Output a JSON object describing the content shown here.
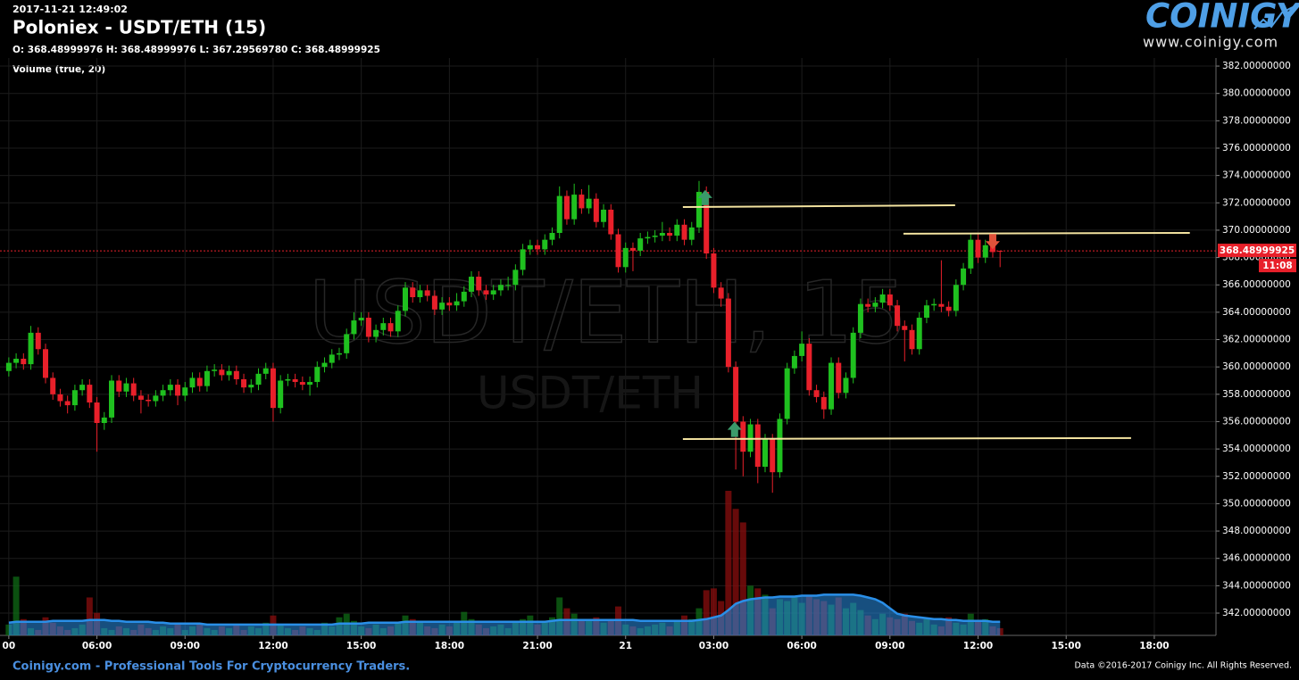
{
  "chart_data": {
    "type": "candlestick",
    "timestamp": "2017-11-21 12:49:02",
    "title": "Poloniex - USDT/ETH (15)",
    "ohlc_text": "O: 368.48999976 H: 368.48999976 L: 367.29569780 C: 368.48999925",
    "watermark": [
      "USDT/ETH, 15",
      "USDT/ETH"
    ],
    "x": [
      3,
      3.25,
      3.5,
      3.75,
      4,
      4.25,
      4.5,
      4.75,
      5,
      5.25,
      5.5,
      5.75,
      6,
      6.25,
      6.5,
      6.75,
      7,
      7.25,
      7.5,
      7.75,
      8,
      8.25,
      8.5,
      8.75,
      9,
      9.25,
      9.5,
      9.75,
      10,
      10.25,
      10.5,
      10.75,
      11,
      11.25,
      11.5,
      11.75,
      12,
      12.25,
      12.5,
      12.75,
      13,
      13.25,
      13.5,
      13.75,
      14,
      14.25,
      14.5,
      14.75,
      15,
      15.25,
      15.5,
      15.75,
      16,
      16.25,
      16.5,
      16.75,
      17,
      17.25,
      17.5,
      17.75,
      18,
      18.25,
      18.5,
      18.75,
      19,
      19.25,
      19.5,
      19.75,
      20,
      20.25,
      20.5,
      20.75,
      21,
      21.25,
      21.5,
      21.75,
      22,
      22.25,
      22.5,
      22.75,
      23,
      23.25,
      23.5,
      23.75,
      24,
      24.25,
      24.5,
      24.75,
      25,
      25.25,
      25.5,
      25.75,
      26,
      26.25,
      26.5,
      26.75,
      27,
      27.25,
      27.5,
      27.75,
      28,
      28.25,
      28.5,
      28.75,
      29,
      29.25,
      29.5,
      29.75,
      30,
      30.25,
      30.5,
      30.75,
      31,
      31.25,
      31.5,
      31.75,
      32,
      32.25,
      32.5,
      32.75,
      33,
      33.25,
      33.5,
      33.75,
      34,
      34.25,
      34.5,
      34.75,
      35,
      35.25,
      35.5,
      35.75,
      36,
      36.25,
      36.5,
      36.75
    ],
    "candles": {
      "up_color": "#1fc01f",
      "down_color": "#e8202a",
      "open": [
        359.7,
        360.3,
        360.6,
        360.2,
        362.5,
        361.3,
        359.2,
        358.0,
        357.5,
        357.2,
        358.3,
        358.7,
        357.4,
        355.9,
        356.3,
        359.0,
        358.2,
        358.8,
        357.9,
        357.6,
        357.5,
        357.9,
        358.3,
        358.7,
        357.9,
        358.5,
        359.2,
        358.6,
        359.7,
        359.8,
        359.4,
        359.7,
        359.1,
        358.5,
        358.7,
        359.5,
        359.9,
        357.0,
        359.0,
        359.1,
        358.9,
        358.7,
        358.9,
        360.0,
        360.3,
        360.9,
        361.0,
        362.4,
        363.4,
        363.6,
        362.2,
        362.7,
        363.2,
        362.6,
        364.1,
        365.8,
        365.1,
        365.6,
        365.2,
        364.2,
        364.7,
        364.5,
        364.8,
        365.5,
        366.6,
        365.6,
        365.3,
        365.6,
        366.0,
        366.0,
        367.1,
        368.6,
        368.9,
        368.6,
        369.3,
        369.8,
        372.5,
        370.8,
        372.6,
        371.6,
        372.3,
        370.6,
        371.5,
        369.7,
        367.3,
        368.7,
        368.5,
        369.4,
        369.5,
        369.6,
        369.8,
        369.6,
        370.4,
        369.3,
        370.2,
        372.8,
        368.3,
        365.8,
        365.0,
        360.0,
        356.0,
        353.8,
        355.8,
        352.7,
        354.7,
        352.3,
        356.2,
        359.9,
        360.8,
        361.7,
        358.3,
        357.8,
        356.9,
        360.3,
        358.1,
        359.2,
        362.5,
        364.6,
        364.4,
        364.7,
        365.3,
        364.5,
        363.0,
        362.7,
        361.3,
        363.6,
        364.5,
        364.6,
        364.4,
        364.1,
        366.0,
        367.2,
        369.3,
        368.0,
        368.9,
        368.48999976
      ],
      "high": [
        360.7,
        361.0,
        361.0,
        363.0,
        362.9,
        361.7,
        359.6,
        358.4,
        357.9,
        358.7,
        359.1,
        359.1,
        357.8,
        356.7,
        359.4,
        359.4,
        359.2,
        359.2,
        358.3,
        358.0,
        358.3,
        358.7,
        359.1,
        359.1,
        358.9,
        359.6,
        359.6,
        360.1,
        360.2,
        360.2,
        360.1,
        360.1,
        359.5,
        359.1,
        359.9,
        360.3,
        360.3,
        359.4,
        359.5,
        359.5,
        359.3,
        359.3,
        360.4,
        360.7,
        361.3,
        361.4,
        362.8,
        364.0,
        364.0,
        364.0,
        363.1,
        363.6,
        363.6,
        364.5,
        366.2,
        366.2,
        366.0,
        366.0,
        365.6,
        365.1,
        365.1,
        365.4,
        365.9,
        367.0,
        367.0,
        366.0,
        366.0,
        366.4,
        366.6,
        367.5,
        369.0,
        369.3,
        369.3,
        369.7,
        370.2,
        373.2,
        372.9,
        373.4,
        373.0,
        373.3,
        372.7,
        371.9,
        371.9,
        370.1,
        369.1,
        369.1,
        369.8,
        369.9,
        370.0,
        370.6,
        370.2,
        370.8,
        370.8,
        370.6,
        373.6,
        373.2,
        368.7,
        366.2,
        365.4,
        360.4,
        356.4,
        356.2,
        356.2,
        355.1,
        355.1,
        356.6,
        360.3,
        361.2,
        362.6,
        362.1,
        358.7,
        358.2,
        360.7,
        360.7,
        359.6,
        362.9,
        365.0,
        365.0,
        365.1,
        365.7,
        365.7,
        364.9,
        363.4,
        363.1,
        364.0,
        364.9,
        365.0,
        367.8,
        364.8,
        366.4,
        367.6,
        369.7,
        369.7,
        369.3,
        369.3,
        368.48999976
      ],
      "low": [
        359.3,
        359.9,
        359.8,
        359.8,
        360.9,
        358.8,
        357.6,
        357.1,
        356.6,
        356.8,
        357.9,
        357.0,
        353.8,
        355.4,
        355.9,
        357.8,
        357.8,
        357.5,
        356.6,
        357.1,
        357.1,
        357.5,
        357.9,
        357.2,
        357.5,
        358.1,
        358.2,
        358.2,
        359.3,
        359.0,
        359.0,
        358.7,
        358.1,
        358.1,
        358.3,
        359.1,
        356.0,
        356.6,
        358.6,
        358.5,
        358.3,
        357.9,
        358.5,
        359.6,
        359.9,
        360.5,
        360.6,
        362.0,
        363.0,
        361.8,
        361.8,
        362.3,
        362.2,
        362.2,
        363.7,
        364.7,
        364.7,
        364.8,
        363.8,
        363.8,
        364.1,
        364.1,
        364.4,
        365.1,
        365.2,
        364.9,
        364.9,
        365.2,
        365.6,
        365.6,
        366.7,
        368.2,
        368.2,
        368.2,
        368.9,
        369.4,
        370.4,
        370.4,
        371.2,
        371.2,
        370.2,
        370.2,
        369.3,
        366.9,
        366.9,
        367.0,
        368.1,
        369.0,
        369.1,
        369.2,
        369.2,
        369.2,
        368.9,
        368.9,
        369.8,
        367.9,
        365.4,
        364.4,
        359.6,
        352.5,
        352.0,
        353.4,
        351.5,
        352.3,
        350.8,
        351.9,
        355.8,
        359.5,
        360.4,
        357.9,
        357.4,
        356.2,
        356.5,
        357.7,
        357.7,
        358.8,
        362.1,
        364.0,
        364.0,
        364.3,
        364.1,
        362.6,
        360.4,
        360.9,
        360.9,
        363.2,
        364.1,
        364.0,
        363.7,
        363.7,
        365.6,
        366.8,
        367.6,
        367.6,
        368.0,
        367.2956978
      ],
      "close": [
        360.3,
        360.6,
        360.2,
        362.5,
        361.3,
        359.2,
        358.0,
        357.5,
        357.2,
        358.3,
        358.7,
        357.4,
        355.9,
        356.3,
        359.0,
        358.2,
        358.8,
        357.9,
        357.6,
        357.5,
        357.9,
        358.3,
        358.7,
        357.9,
        358.5,
        359.2,
        358.6,
        359.7,
        359.8,
        359.4,
        359.7,
        359.1,
        358.5,
        358.7,
        359.5,
        359.9,
        357.0,
        359.0,
        359.1,
        358.9,
        358.7,
        358.9,
        360.0,
        360.3,
        360.9,
        361.0,
        362.4,
        363.4,
        363.6,
        362.2,
        362.7,
        363.2,
        362.6,
        364.1,
        365.8,
        365.1,
        365.6,
        365.2,
        364.2,
        364.7,
        364.5,
        364.8,
        365.5,
        366.6,
        365.6,
        365.3,
        365.6,
        366.0,
        366.0,
        367.1,
        368.6,
        368.9,
        368.6,
        369.3,
        369.8,
        372.5,
        370.8,
        372.6,
        371.6,
        372.3,
        370.6,
        371.5,
        369.7,
        367.3,
        368.7,
        368.5,
        369.4,
        369.5,
        369.6,
        369.8,
        369.6,
        370.4,
        369.3,
        370.2,
        372.8,
        368.3,
        365.8,
        365.0,
        360.0,
        356.0,
        353.8,
        355.8,
        352.7,
        354.7,
        352.3,
        356.2,
        359.9,
        360.8,
        361.7,
        358.3,
        357.8,
        356.9,
        360.3,
        358.1,
        359.2,
        362.5,
        364.6,
        364.4,
        364.7,
        365.3,
        364.5,
        363.0,
        362.7,
        361.3,
        363.6,
        364.5,
        364.6,
        364.4,
        364.1,
        366.0,
        367.2,
        369.3,
        368.0,
        368.9,
        368.4,
        368.48999925
      ]
    },
    "volume": {
      "name": "Volume (true, 20)",
      "up_color": "#0f6b16",
      "down_color": "#8a0d0d",
      "ma_color": "#2a8fe8",
      "values": [
        12,
        65,
        18,
        8,
        6,
        20,
        14,
        10,
        6,
        8,
        12,
        42,
        25,
        8,
        6,
        10,
        8,
        6,
        12,
        8,
        6,
        10,
        8,
        12,
        6,
        10,
        14,
        8,
        6,
        10,
        8,
        12,
        6,
        10,
        8,
        14,
        22,
        12,
        8,
        6,
        10,
        8,
        6,
        14,
        10,
        20,
        24,
        16,
        10,
        8,
        12,
        8,
        10,
        14,
        22,
        18,
        14,
        10,
        8,
        12,
        10,
        14,
        26,
        18,
        12,
        8,
        10,
        12,
        8,
        14,
        18,
        22,
        12,
        16,
        20,
        42,
        30,
        24,
        18,
        16,
        20,
        14,
        18,
        32,
        12,
        10,
        8,
        10,
        12,
        14,
        10,
        16,
        22,
        18,
        30,
        50,
        52,
        38,
        160,
        140,
        125,
        55,
        52,
        45,
        30,
        40,
        38,
        42,
        36,
        44,
        40,
        38,
        34,
        42,
        30,
        36,
        28,
        22,
        18,
        24,
        20,
        18,
        24,
        16,
        14,
        18,
        12,
        10,
        20,
        14,
        12,
        24,
        16,
        18,
        10,
        8
      ],
      "ma": [
        14,
        15,
        15,
        15,
        15,
        15,
        16,
        16,
        16,
        16,
        16,
        17,
        17,
        17,
        16,
        16,
        15,
        15,
        15,
        15,
        14,
        14,
        13,
        13,
        13,
        13,
        13,
        12,
        12,
        12,
        12,
        12,
        12,
        12,
        12,
        12,
        12,
        12,
        12,
        12,
        12,
        12,
        12,
        12,
        12,
        13,
        13,
        13,
        13,
        14,
        14,
        14,
        14,
        14,
        15,
        15,
        15,
        15,
        15,
        15,
        15,
        15,
        15,
        15,
        15,
        15,
        15,
        15,
        15,
        15,
        15,
        15,
        15,
        15,
        16,
        17,
        17,
        17,
        17,
        17,
        17,
        17,
        17,
        17,
        17,
        17,
        16,
        16,
        16,
        16,
        16,
        16,
        16,
        16,
        17,
        18,
        20,
        22,
        28,
        35,
        38,
        40,
        41,
        42,
        42,
        43,
        43,
        43,
        44,
        44,
        44,
        45,
        45,
        45,
        45,
        45,
        44,
        42,
        40,
        36,
        30,
        24,
        22,
        21,
        20,
        19,
        18,
        18,
        17,
        17,
        16,
        16,
        16,
        16,
        15,
        15
      ]
    },
    "trendlines": [
      {
        "x": [
          25.95,
          35.22
        ],
        "y": [
          371.69,
          371.82
        ],
        "color": "#f3e3a0"
      },
      {
        "x": [
          33.46,
          43.21
        ],
        "y": [
          369.74,
          369.8
        ],
        "color": "#f3e3a0"
      },
      {
        "x": [
          25.95,
          41.21
        ],
        "y": [
          354.73,
          354.8
        ],
        "color": "#f3e3a0"
      }
    ],
    "markers": [
      {
        "x": 26.71,
        "y": 372.35,
        "direction": "up",
        "color": "#3a9a6a"
      },
      {
        "x": 27.71,
        "y": 355.4,
        "direction": "up",
        "color": "#3a9a6a"
      },
      {
        "x": 36.5,
        "y": 369.2,
        "direction": "down",
        "color": "#e0523a"
      }
    ],
    "last_price": 368.48999925,
    "last_price_color": "#e8202a",
    "countdown": "11:08",
    "xlim": [
      2.7,
      44.1
    ],
    "ylim": [
      340.37,
      382.59
    ],
    "xticks": [
      {
        "value": 3,
        "label": "00"
      },
      {
        "value": 6,
        "label": "06:00"
      },
      {
        "value": 9,
        "label": "09:00"
      },
      {
        "value": 12,
        "label": "12:00"
      },
      {
        "value": 15,
        "label": "15:00"
      },
      {
        "value": 18,
        "label": "18:00"
      },
      {
        "value": 21,
        "label": "21:00"
      },
      {
        "value": 24,
        "label": "21"
      },
      {
        "value": 27,
        "label": "03:00"
      },
      {
        "value": 30,
        "label": "06:00"
      },
      {
        "value": 33,
        "label": "09:00"
      },
      {
        "value": 36,
        "label": "12:00"
      },
      {
        "value": 39,
        "label": "15:00"
      },
      {
        "value": 42,
        "label": "18:00"
      }
    ],
    "yticks": [
      {
        "value": 342,
        "label": "342.00000000"
      },
      {
        "value": 344,
        "label": "344.00000000"
      },
      {
        "value": 346,
        "label": "346.00000000"
      },
      {
        "value": 348,
        "label": "348.00000000"
      },
      {
        "value": 350,
        "label": "350.00000000"
      },
      {
        "value": 352,
        "label": "352.00000000"
      },
      {
        "value": 354,
        "label": "354.00000000"
      },
      {
        "value": 356,
        "label": "356.00000000"
      },
      {
        "value": 358,
        "label": "358.00000000"
      },
      {
        "value": 360,
        "label": "360.00000000"
      },
      {
        "value": 362,
        "label": "362.00000000"
      },
      {
        "value": 364,
        "label": "364.00000000"
      },
      {
        "value": 366,
        "label": "366.00000000"
      },
      {
        "value": 368,
        "label": "368.00000000"
      },
      {
        "value": 370,
        "label": "370.00000000"
      },
      {
        "value": 372,
        "label": "372.00000000"
      },
      {
        "value": 374,
        "label": "374.00000000"
      },
      {
        "value": 376,
        "label": "376.00000000"
      },
      {
        "value": 378,
        "label": "378.00000000"
      },
      {
        "value": 380,
        "label": "380.00000000"
      },
      {
        "value": 382,
        "label": "382.00000000"
      }
    ],
    "grid": true
  },
  "branding": {
    "logo": "COINIGY",
    "url": "www.coinigy.com"
  },
  "footer": {
    "left": "Coinigy.com - Professional Tools For Cryptocurrency Traders.",
    "right": "Data ©2016-2017 Coinigy Inc. All Rights Reserved."
  }
}
